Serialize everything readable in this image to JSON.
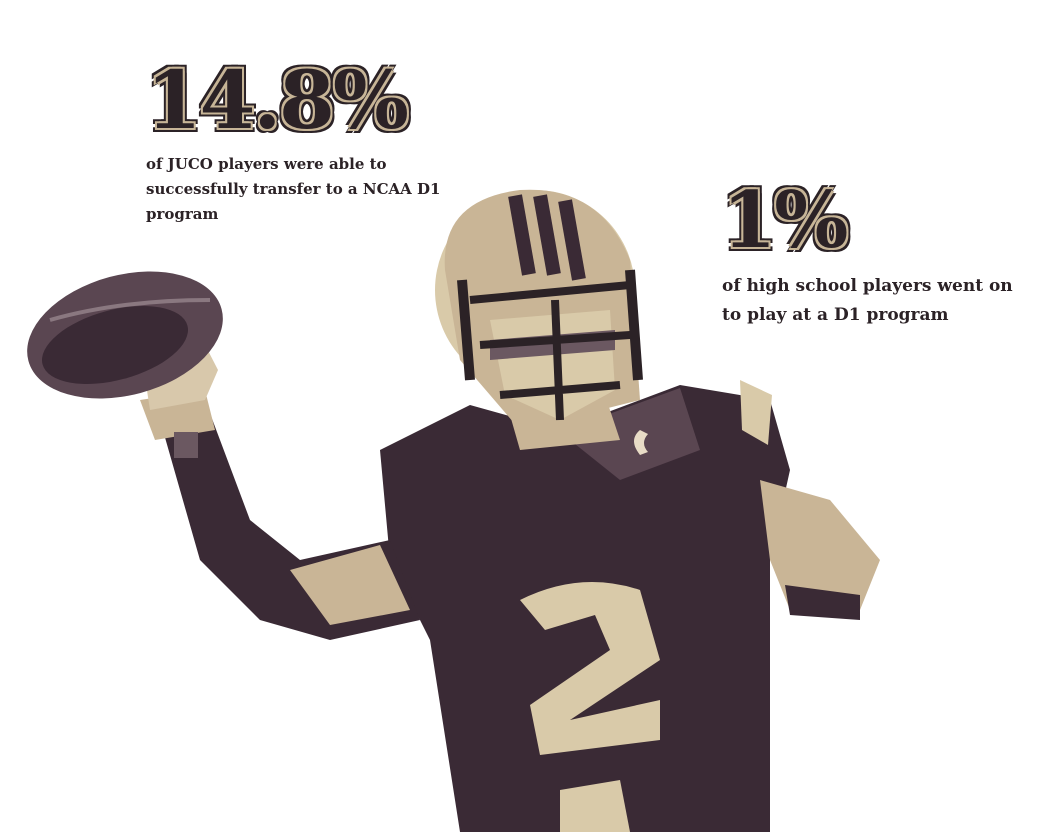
{
  "stats": [
    {
      "value": "14.8%",
      "description": "of JUCO players were able to successfully transfer to a NCAA D1 program"
    },
    {
      "value": "1%",
      "description": "of high school players went on to play at a D1 program"
    }
  ]
}
